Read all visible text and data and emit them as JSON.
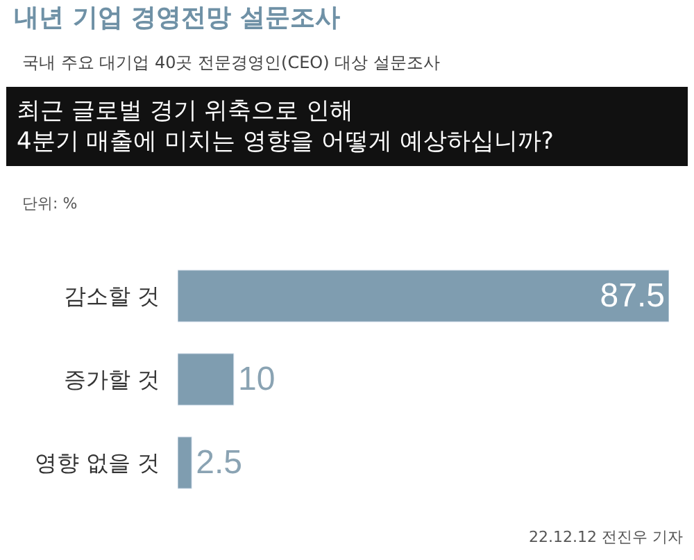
{
  "chart_data": {
    "type": "bar",
    "orientation": "horizontal",
    "title": "내년 기업 경영전망 설문조사",
    "subtitle": "국내 주요 대기업 40곳 전문경영인(CEO) 대상 설문조사",
    "categories": [
      "감소할 것",
      "증가할 것",
      "영향 없을 것"
    ],
    "values": [
      87.5,
      10,
      2.5
    ],
    "color": "#7f9db0",
    "data_labels": true,
    "annotations": [
      "최근 글로벌 경기 위축으로 인해\n4분기 매출에 미치는 영향을 어떻게 예상하십니까?",
      "단위: %",
      "22.12.12 전진우 기자"
    ]
  }
}
